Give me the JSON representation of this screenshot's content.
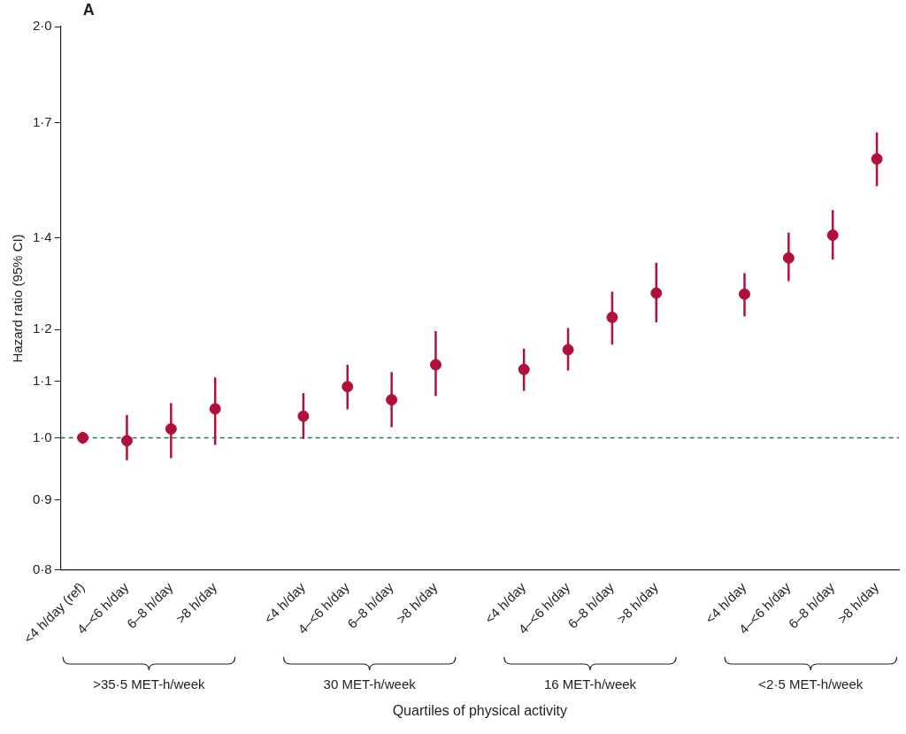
{
  "chart_data": {
    "type": "scatter",
    "panel_label": "A",
    "x_label": "Quartiles of physical activity",
    "y_label": "Hazard ratio (95% CI)",
    "color": "#b0103a",
    "marker": "circle",
    "log": "y",
    "grid": false,
    "ylim": [
      0.8,
      2.0
    ],
    "yticks": [
      {
        "value": 0.8,
        "label": "0·8"
      },
      {
        "value": 0.9,
        "label": "0·9"
      },
      {
        "value": 1.0,
        "label": "1·0"
      },
      {
        "value": 1.1,
        "label": "1·1"
      },
      {
        "value": 1.2,
        "label": "1·2"
      },
      {
        "value": 1.4,
        "label": "1·4"
      },
      {
        "value": 1.7,
        "label": "1·7"
      },
      {
        "value": 2.0,
        "label": "2·0"
      }
    ],
    "reference_line": {
      "value": 1.0,
      "color": "#2e6e5e",
      "line_style": "dashed"
    },
    "groups": [
      {
        "label": ">35·5 MET-h/week",
        "categories": [
          "<4 h/day (ref)",
          "4–<6 h/day",
          "6–8 h/day",
          ">8 h/day"
        ],
        "values": [
          1.0,
          0.995,
          1.015,
          1.05
        ],
        "ci_lower": [
          0.99,
          0.963,
          0.966,
          0.988
        ],
        "ci_upper": [
          1.01,
          1.039,
          1.06,
          1.107
        ]
      },
      {
        "label": "30 MET-h/week",
        "categories": [
          "<4 h/day",
          "4–<6 h/day",
          "6–8 h/day",
          ">8 h/day"
        ],
        "values": [
          1.037,
          1.09,
          1.066,
          1.131
        ],
        "ci_lower": [
          0.998,
          1.049,
          1.018,
          1.073
        ],
        "ci_upper": [
          1.078,
          1.131,
          1.117,
          1.197
        ]
      },
      {
        "label": "16 MET-h/week",
        "categories": [
          "<4 h/day",
          "4–<6 h/day",
          "6–8 h/day",
          ">8 h/day"
        ],
        "values": [
          1.122,
          1.16,
          1.225,
          1.276
        ],
        "ci_lower": [
          1.082,
          1.12,
          1.17,
          1.215
        ],
        "ci_upper": [
          1.162,
          1.203,
          1.279,
          1.343
        ]
      },
      {
        "label": "<2·5 MET-h/week",
        "categories": [
          "<4 h/day",
          "4–<6 h/day",
          "6–8 h/day",
          ">8 h/day"
        ],
        "values": [
          1.274,
          1.354,
          1.407,
          1.6
        ],
        "ci_lower": [
          1.227,
          1.302,
          1.35,
          1.528
        ],
        "ci_upper": [
          1.32,
          1.413,
          1.468,
          1.673
        ]
      }
    ]
  }
}
